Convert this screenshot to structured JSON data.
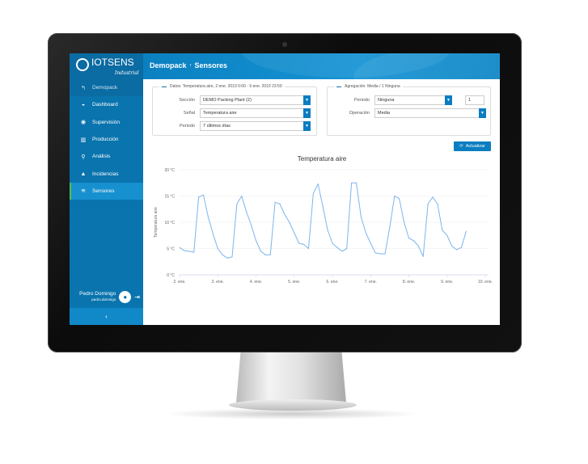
{
  "sidebar": {
    "logo": "IOTSENS",
    "logo_sub": "Industrial",
    "items": [
      {
        "label": "Demopack",
        "icon": "back-arrow-icon",
        "glyph": "↰"
      },
      {
        "label": "Dashboard",
        "icon": "dashboard-gauge-icon",
        "glyph": "◒"
      },
      {
        "label": "Supervisión",
        "icon": "eye-icon",
        "glyph": "◉"
      },
      {
        "label": "Producción",
        "icon": "bar-chart-icon",
        "glyph": "▥"
      },
      {
        "label": "Análisis",
        "icon": "search-icon",
        "glyph": "⚲"
      },
      {
        "label": "Incidencias",
        "icon": "warning-icon",
        "glyph": "▲"
      },
      {
        "label": "Sensores",
        "icon": "wifi-icon",
        "glyph": "≋"
      }
    ],
    "user": {
      "name": "Pedro Domingo",
      "username": "pedro.domingo"
    },
    "collapse": "‹"
  },
  "header": {
    "breadcrumb": [
      "Demopack",
      "Sensores"
    ],
    "separator": "›"
  },
  "data_panel": {
    "legend": "Datos: Temperatura aire, 2 ene. 2019 0:00 - 9 ene. 2019 23:59",
    "seccion_label": "Sección",
    "seccion": "DEMO Packing Plant (2)",
    "senal_label": "Señal",
    "senal": "Temperatura aire",
    "periodo_label": "Periodo",
    "periodo": "7 últimos días"
  },
  "agg_panel": {
    "legend": "Agregación: Media / 1 Ninguna",
    "periodo_label": "Periodo",
    "periodo": "Ninguna",
    "count": "1",
    "operacion_label": "Operación",
    "operacion": "Media"
  },
  "refresh_button": "Actualizar",
  "colors": {
    "primary": "#0b7dc1",
    "sidebar": "#0a74ae",
    "active_indicator": "#4cc24c",
    "series": "#7cb5ec"
  },
  "chart_data": {
    "type": "line",
    "title": "Temperatura aire",
    "ylabel": "Temperatura aire",
    "ylim": [
      0,
      20
    ],
    "yticks": [
      "0 °C",
      "5 °C",
      "10 °C",
      "15 °C",
      "20 °C"
    ],
    "xticks": [
      "2. ene.",
      "3. ene.",
      "4. ene.",
      "5. ene.",
      "6. ene.",
      "7. ene.",
      "8. ene.",
      "9. ene.",
      "10. ene."
    ],
    "grid": true,
    "series": [
      {
        "hours_per_point": 3,
        "start": "2019-01-02 00:00",
        "values": [
          5.2,
          4.6,
          4.5,
          4.3,
          14.8,
          15.2,
          11,
          7.8,
          5.0,
          3.8,
          3.2,
          3.4,
          13.5,
          15.0,
          12,
          9.5,
          6.5,
          4.5,
          3.8,
          3.8,
          13.8,
          13.5,
          11.5,
          10.0,
          8.0,
          6.0,
          5.8,
          5.0,
          15.5,
          17.3,
          13,
          8.5,
          6.0,
          5.2,
          4.5,
          5.0,
          17.5,
          17.5,
          11,
          8.0,
          6.0,
          4.2,
          4.0,
          4.0,
          9.0,
          15.0,
          14.5,
          10.0,
          7.0,
          6.5,
          5.5,
          3.5,
          13.5,
          14.8,
          13.5,
          8.5,
          7.5,
          5.5,
          4.8,
          5.2,
          8.3
        ]
      }
    ]
  }
}
